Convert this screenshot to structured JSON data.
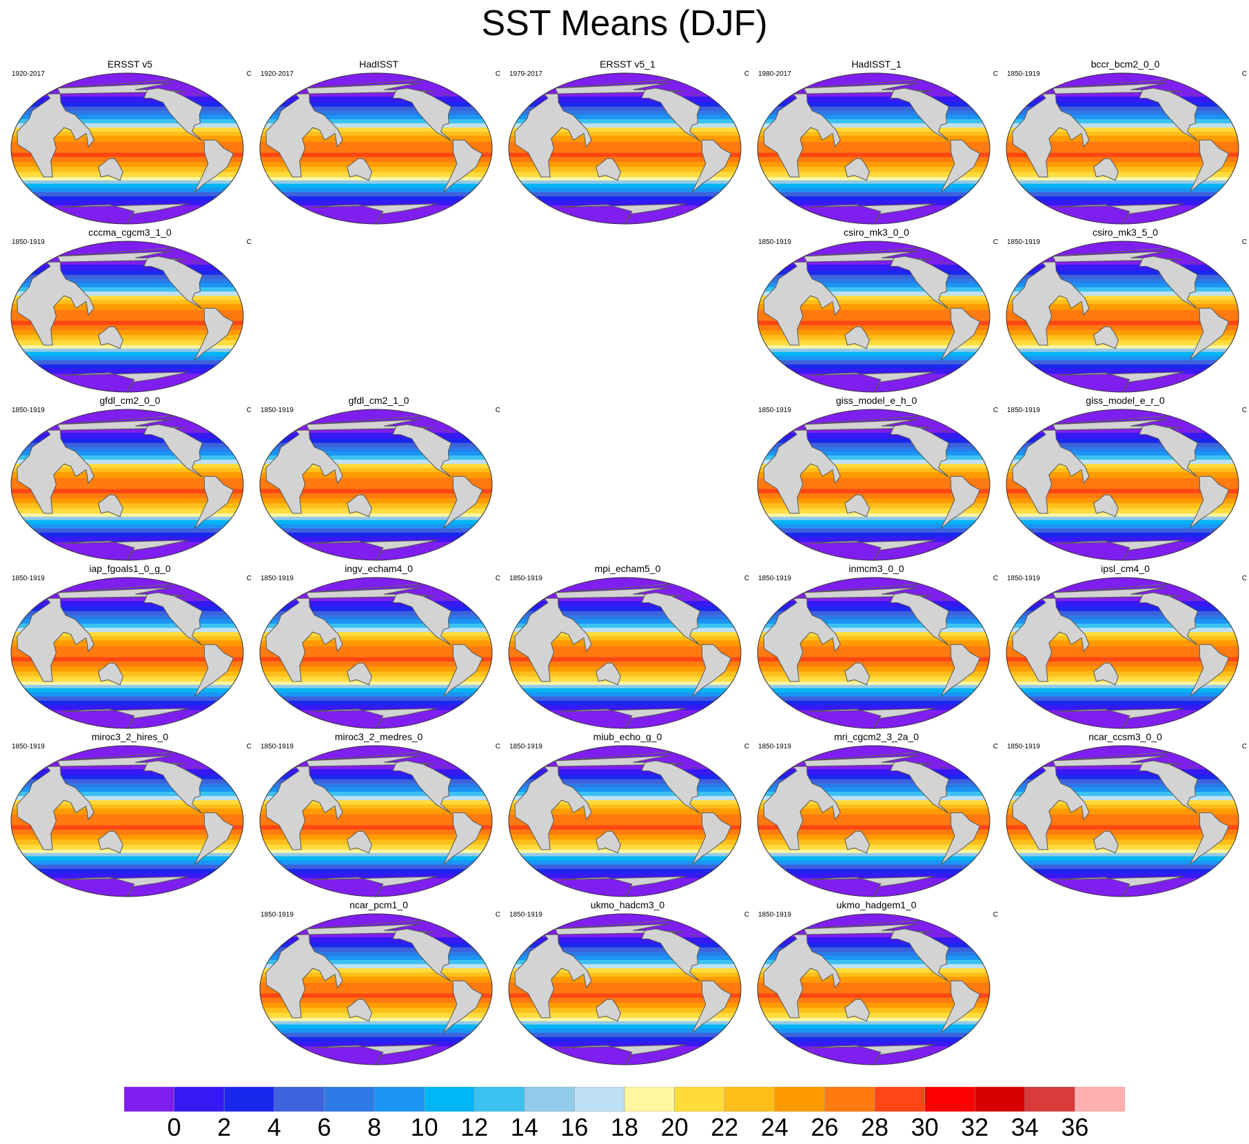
{
  "title": "SST Means (DJF)",
  "unit": "C",
  "panels": [
    {
      "name": "ERSST v5",
      "period": "1920-2017",
      "row": 0,
      "col": 0
    },
    {
      "name": "HadISST",
      "period": "1920-2017",
      "row": 0,
      "col": 1
    },
    {
      "name": "ERSST v5_1",
      "period": "1979-2017",
      "row": 0,
      "col": 2
    },
    {
      "name": "HadISST_1",
      "period": "1980-2017",
      "row": 0,
      "col": 3
    },
    {
      "name": "bccr_bcm2_0_0",
      "period": "1850-1919",
      "row": 0,
      "col": 4
    },
    {
      "name": "cccma_cgcm3_1_0",
      "period": "1850-1919",
      "row": 1,
      "col": 0
    },
    {
      "name": "csiro_mk3_0_0",
      "period": "1850-1919",
      "row": 1,
      "col": 3
    },
    {
      "name": "csiro_mk3_5_0",
      "period": "1850-1919",
      "row": 1,
      "col": 4
    },
    {
      "name": "gfdl_cm2_0_0",
      "period": "1850-1919",
      "row": 2,
      "col": 0
    },
    {
      "name": "gfdl_cm2_1_0",
      "period": "1850-1919",
      "row": 2,
      "col": 1
    },
    {
      "name": "giss_model_e_h_0",
      "period": "1850-1919",
      "row": 2,
      "col": 3
    },
    {
      "name": "giss_model_e_r_0",
      "period": "1850-1919",
      "row": 2,
      "col": 4
    },
    {
      "name": "iap_fgoals1_0_g_0",
      "period": "1850-1919",
      "row": 3,
      "col": 0
    },
    {
      "name": "ingv_echam4_0",
      "period": "1850-1919",
      "row": 3,
      "col": 1
    },
    {
      "name": "mpi_echam5_0",
      "period": "1850-1919",
      "row": 3,
      "col": 2
    },
    {
      "name": "inmcm3_0_0",
      "period": "1850-1919",
      "row": 3,
      "col": 3
    },
    {
      "name": "ipsl_cm4_0",
      "period": "1850-1919",
      "row": 3,
      "col": 4
    },
    {
      "name": "miroc3_2_hires_0",
      "period": "1850-1919",
      "row": 4,
      "col": 0
    },
    {
      "name": "miroc3_2_medres_0",
      "period": "1850-1919",
      "row": 4,
      "col": 1
    },
    {
      "name": "miub_echo_g_0",
      "period": "1850-1919",
      "row": 4,
      "col": 2
    },
    {
      "name": "mri_cgcm2_3_2a_0",
      "period": "1850-1919",
      "row": 4,
      "col": 3
    },
    {
      "name": "ncar_ccsm3_0_0",
      "period": "1850-1919",
      "row": 4,
      "col": 4
    },
    {
      "name": "ncar_pcm1_0",
      "period": "1850-1919",
      "row": 5,
      "col": 1
    },
    {
      "name": "ukmo_hadcm3_0",
      "period": "1850-1919",
      "row": 5,
      "col": 2
    },
    {
      "name": "ukmo_hadgem1_0",
      "period": "1850-1919",
      "row": 5,
      "col": 3
    }
  ],
  "colorbar": {
    "colors": [
      "#7f1fef",
      "#3719f5",
      "#1a28ee",
      "#3e61dc",
      "#2c7ae8",
      "#1b95f5",
      "#00b5f5",
      "#3cc2f0",
      "#92cbea",
      "#bde0f5",
      "#fff6a0",
      "#ffdb3c",
      "#ffbf18",
      "#ff9b00",
      "#ff7a10",
      "#ff4614",
      "#ff0000",
      "#d70000",
      "#d93a3a",
      "#ffb0b0"
    ],
    "labels": [
      "0",
      "2",
      "4",
      "6",
      "8",
      "10",
      "12",
      "14",
      "16",
      "18",
      "20",
      "22",
      "24",
      "26",
      "28",
      "30",
      "32",
      "34",
      "36"
    ]
  },
  "colors": {
    "land": "#d3d3d3",
    "land_outline": "#555555",
    "map_outline": "#333333"
  }
}
